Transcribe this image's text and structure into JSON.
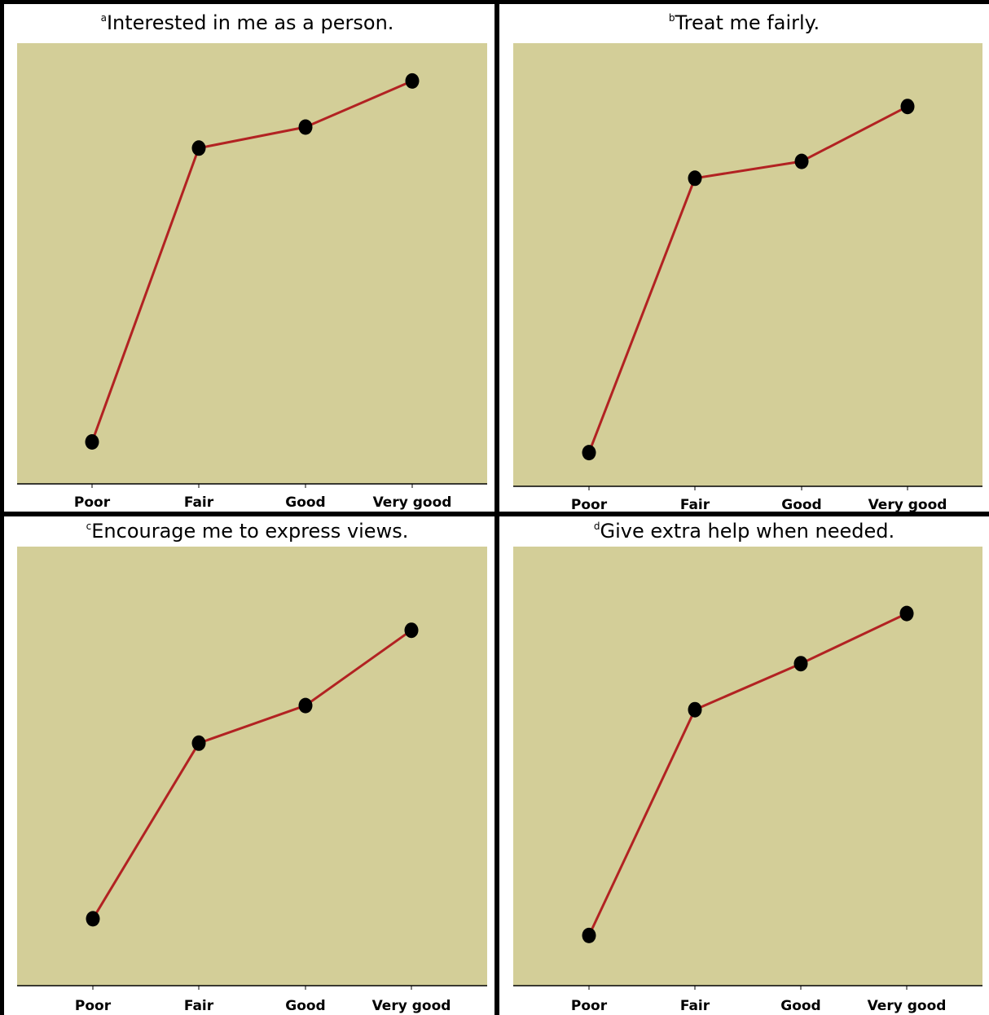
{
  "colors": {
    "plot_background": "#d3ce98",
    "line": "#b22222",
    "marker": "#000000",
    "axis": "#000000",
    "frame": "#000000"
  },
  "chart_data": [
    {
      "type": "line",
      "panel_letter": "a",
      "title": "Interested in me as a person.",
      "categories": [
        "Poor",
        "Fair",
        "Good",
        "Very good"
      ],
      "values": [
        0.1,
        0.8,
        0.85,
        0.96
      ],
      "xlabel": "",
      "ylabel": "",
      "ylim": [
        0,
        1.05
      ],
      "y_ticks_visible": false,
      "grid": false,
      "legend": "none"
    },
    {
      "type": "line",
      "panel_letter": "b",
      "title": "Treat me fairly.",
      "categories": [
        "Poor",
        "Fair",
        "Good",
        "Very good"
      ],
      "values": [
        0.08,
        0.73,
        0.77,
        0.9
      ],
      "xlabel": "",
      "ylabel": "",
      "ylim": [
        0,
        1.05
      ],
      "y_ticks_visible": false,
      "grid": false,
      "legend": "none"
    },
    {
      "type": "line",
      "panel_letter": "c",
      "title": "Encourage me to express views.",
      "categories": [
        "Poor",
        "Fair",
        "Good",
        "Very good"
      ],
      "values": [
        0.16,
        0.58,
        0.67,
        0.85
      ],
      "xlabel": "",
      "ylabel": "",
      "ylim": [
        0,
        1.05
      ],
      "y_ticks_visible": false,
      "grid": false,
      "legend": "none"
    },
    {
      "type": "line",
      "panel_letter": "d",
      "title": "Give extra help when needed.",
      "categories": [
        "Poor",
        "Fair",
        "Good",
        "Very good"
      ],
      "values": [
        0.12,
        0.66,
        0.77,
        0.89
      ],
      "xlabel": "",
      "ylabel": "",
      "ylim": [
        0,
        1.05
      ],
      "y_ticks_visible": false,
      "grid": false,
      "legend": "none"
    }
  ]
}
